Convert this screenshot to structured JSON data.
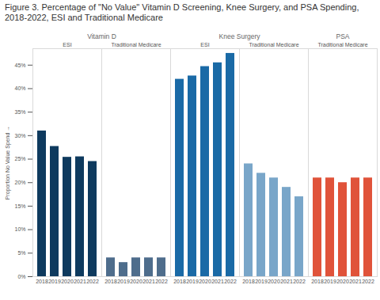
{
  "chart_data": {
    "type": "bar",
    "title": "Figure 3. Percentage of \"No Value\" Vitamin D Screening, Knee Surgery, and PSA Spending, 2018-2022, ESI and Traditional Medicare",
    "y_label": "Proportion No Value Spend",
    "categories": [
      "2018",
      "2019",
      "2020",
      "2021",
      "2022"
    ],
    "series": [
      {
        "group": "Vitamin D",
        "name": "ESI",
        "color": "#0e3a5e",
        "values": [
          31,
          27.7,
          25.4,
          25.5,
          24.5
        ]
      },
      {
        "group": "Vitamin D",
        "name": "Traditional Medicare",
        "color": "#4e6d8c",
        "values": [
          4,
          3,
          4,
          4,
          4
        ]
      },
      {
        "group": "Knee Surgery",
        "name": "ESI",
        "color": "#1a6aa6",
        "values": [
          42,
          42.7,
          44.7,
          45.5,
          47.5
        ]
      },
      {
        "group": "Knee Surgery",
        "name": "Traditional Medicare",
        "color": "#79a6c9",
        "values": [
          24,
          22,
          21,
          19,
          17
        ]
      },
      {
        "group": "PSA",
        "name": "Traditional Medicare",
        "color": "#e0533a",
        "values": [
          21,
          21,
          20,
          21,
          21
        ]
      }
    ],
    "ylim": [
      0,
      48.5
    ],
    "yticks": [
      {
        "value": 0,
        "label": "0%"
      },
      {
        "value": 5,
        "label": "5%"
      },
      {
        "value": 10,
        "label": "10%"
      },
      {
        "value": 15,
        "label": "15%"
      },
      {
        "value": 20,
        "label": "20%"
      },
      {
        "value": 25,
        "label": "25%"
      },
      {
        "value": 30,
        "label": "30%"
      },
      {
        "value": 35,
        "label": "35%"
      },
      {
        "value": 40,
        "label": "40%"
      },
      {
        "value": 45,
        "label": "45%"
      }
    ],
    "grid": false
  }
}
